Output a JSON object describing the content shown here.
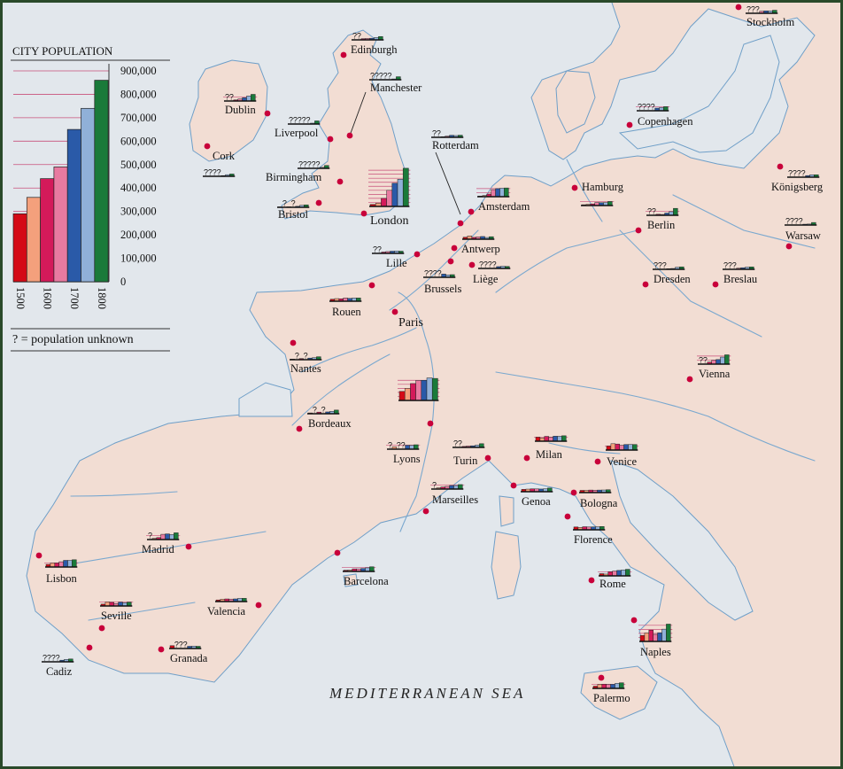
{
  "legend": {
    "title": "CITY POPULATION",
    "unknown_note": "? = population unknown",
    "axis_ticks": [
      "900,000",
      "800,000",
      "700,000",
      "600,000",
      "500,000",
      "400,000",
      "300,000",
      "200,000",
      "100,000",
      "0"
    ],
    "years": [
      "1500",
      "1600",
      "1700",
      "1800"
    ]
  },
  "sea_label": "MEDITERRANEAN SEA",
  "colors": {
    "land": "#f2ddd3",
    "sea": "#e2e7ec",
    "river": "#7aa8cf",
    "coast": "#6f9fc8",
    "border": "#2a4a2a",
    "city_dot": "#c8003a",
    "gridline": "#c8507a",
    "series": [
      "#d40a16",
      "#f4a07c",
      "#d41a5a",
      "#e87aa0",
      "#2a5aa8",
      "#90b0d8",
      "#1a7a3a"
    ]
  },
  "chart_data": {
    "type": "bar",
    "title": "CITY POPULATION",
    "note": "? = population unknown",
    "ylim": [
      0,
      900000
    ],
    "years": [
      1500,
      1550,
      1600,
      1650,
      1700,
      1750,
      1800
    ],
    "axis_year_labels": [
      "1500",
      "1600",
      "1700",
      "1800"
    ],
    "legend_values": [
      290000,
      360000,
      440000,
      490000,
      650000,
      740000,
      860000
    ],
    "cities": [
      {
        "name": "Edinburgh",
        "values": [
          null,
          null,
          30000,
          35000,
          40000,
          57000,
          83000
        ]
      },
      {
        "name": "Manchester",
        "values": [
          null,
          null,
          null,
          null,
          null,
          20000,
          75000
        ]
      },
      {
        "name": "Dublin",
        "values": [
          null,
          null,
          26000,
          50000,
          80000,
          125000,
          165000
        ]
      },
      {
        "name": "Liverpool",
        "values": [
          null,
          null,
          null,
          null,
          null,
          22000,
          78000
        ]
      },
      {
        "name": "Cork",
        "values": [
          null,
          null,
          null,
          null,
          17000,
          40000,
          57000
        ]
      },
      {
        "name": "Birmingham",
        "values": [
          null,
          null,
          null,
          null,
          null,
          24000,
          71000
        ]
      },
      {
        "name": "Bristol",
        "values": [
          10000,
          null,
          12000,
          null,
          25000,
          50000,
          61000
        ]
      },
      {
        "name": "London",
        "values": [
          50000,
          80000,
          200000,
          400000,
          575000,
          676000,
          948000
        ]
      },
      {
        "name": "Rotterdam",
        "values": [
          null,
          null,
          13000,
          30000,
          51000,
          44000,
          53000
        ]
      },
      {
        "name": "Amsterdam",
        "values": [
          14000,
          30000,
          65000,
          175000,
          200000,
          210000,
          217000
        ]
      },
      {
        "name": "Antwerp",
        "values": [
          49000,
          80000,
          46000,
          56000,
          67000,
          43000,
          62000
        ]
      },
      {
        "name": "Lille",
        "values": [
          null,
          null,
          33000,
          45000,
          55000,
          60000,
          55000
        ]
      },
      {
        "name": "Brussels",
        "values": [
          null,
          null,
          null,
          null,
          80000,
          60000,
          66000
        ]
      },
      {
        "name": "Liège",
        "values": [
          null,
          null,
          null,
          null,
          45000,
          55000,
          50000
        ]
      },
      {
        "name": "Rouen",
        "values": [
          50000,
          65000,
          60000,
          80000,
          70000,
          80000,
          80000
        ]
      },
      {
        "name": "Paris",
        "values": [
          225000,
          300000,
          420000,
          500000,
          500000,
          560000,
          547000
        ]
      },
      {
        "name": "Nantes",
        "values": [
          14000,
          null,
          28000,
          null,
          40000,
          50000,
          73000
        ]
      },
      {
        "name": "Bordeaux",
        "values": [
          20000,
          null,
          40000,
          null,
          45000,
          60000,
          91000
        ]
      },
      {
        "name": "Lyons",
        "values": [
          null,
          58000,
          null,
          null,
          97000,
          97000,
          110000
        ]
      },
      {
        "name": "Marseilles",
        "values": [
          null,
          30000,
          50000,
          65000,
          88000,
          88000,
          111000
        ]
      },
      {
        "name": "Turin",
        "values": [
          null,
          null,
          24000,
          35000,
          40000,
          57000,
          92000
        ]
      },
      {
        "name": "Milan",
        "values": [
          100000,
          80000,
          120000,
          100000,
          124000,
          123000,
          135000
        ]
      },
      {
        "name": "Genoa",
        "values": [
          58000,
          65000,
          71000,
          70000,
          67000,
          72000,
          91000
        ]
      },
      {
        "name": "Venice",
        "values": [
          100000,
          158000,
          150000,
          120000,
          138000,
          140000,
          138000
        ]
      },
      {
        "name": "Bologna",
        "values": [
          55000,
          55000,
          63000,
          58000,
          63000,
          65000,
          71000
        ]
      },
      {
        "name": "Florence",
        "values": [
          70000,
          60000,
          76000,
          70000,
          72000,
          74000,
          81000
        ]
      },
      {
        "name": "Rome",
        "values": [
          55000,
          45000,
          105000,
          120000,
          135000,
          146000,
          163000
        ]
      },
      {
        "name": "Naples",
        "values": [
          150000,
          212000,
          281000,
          176000,
          216000,
          305000,
          430000
        ]
      },
      {
        "name": "Palermo",
        "values": [
          55000,
          100000,
          105000,
          100000,
          100000,
          124000,
          139000
        ]
      },
      {
        "name": "Lisbon",
        "values": [
          65000,
          100000,
          100000,
          130000,
          165000,
          165000,
          180000
        ]
      },
      {
        "name": "Madrid",
        "values": [
          null,
          30000,
          49000,
          130000,
          140000,
          123000,
          167000
        ]
      },
      {
        "name": "Seville",
        "values": [
          46000,
          100000,
          90000,
          60000,
          96000,
          80000,
          96000
        ]
      },
      {
        "name": "Valencia",
        "values": [
          40000,
          58000,
          65000,
          61000,
          66000,
          80000,
          80000
        ]
      },
      {
        "name": "Cadiz",
        "values": [
          null,
          null,
          null,
          null,
          40000,
          60000,
          70000
        ]
      },
      {
        "name": "Granada",
        "values": [
          70000,
          null,
          null,
          null,
          55000,
          60000,
          55000
        ]
      },
      {
        "name": "Barcelona",
        "values": [
          30000,
          35000,
          64000,
          64000,
          73000,
          90000,
          115000
        ]
      },
      {
        "name": "Hamburg",
        "values": [
          20000,
          30000,
          40000,
          75000,
          70000,
          75000,
          100000
        ]
      },
      {
        "name": "Berlin",
        "values": [
          null,
          null,
          25000,
          20000,
          55000,
          90000,
          172000
        ]
      },
      {
        "name": "Dresden",
        "values": [
          null,
          null,
          null,
          15000,
          21000,
          52000,
          61000
        ]
      },
      {
        "name": "Breslau",
        "values": [
          null,
          null,
          null,
          30000,
          40000,
          55000,
          60000
        ]
      },
      {
        "name": "Vienna",
        "values": [
          null,
          null,
          50000,
          100000,
          114000,
          175000,
          231000
        ]
      },
      {
        "name": "Copenhagen",
        "values": [
          null,
          null,
          null,
          null,
          65000,
          79000,
          100000
        ]
      },
      {
        "name": "Stockholm",
        "values": [
          null,
          null,
          null,
          50000,
          60000,
          60000,
          76000
        ]
      },
      {
        "name": "Königsberg",
        "values": [
          null,
          null,
          null,
          null,
          40000,
          60000,
          60000
        ]
      },
      {
        "name": "Warsaw",
        "values": [
          null,
          null,
          null,
          null,
          21000,
          25000,
          63000
        ]
      }
    ]
  }
}
